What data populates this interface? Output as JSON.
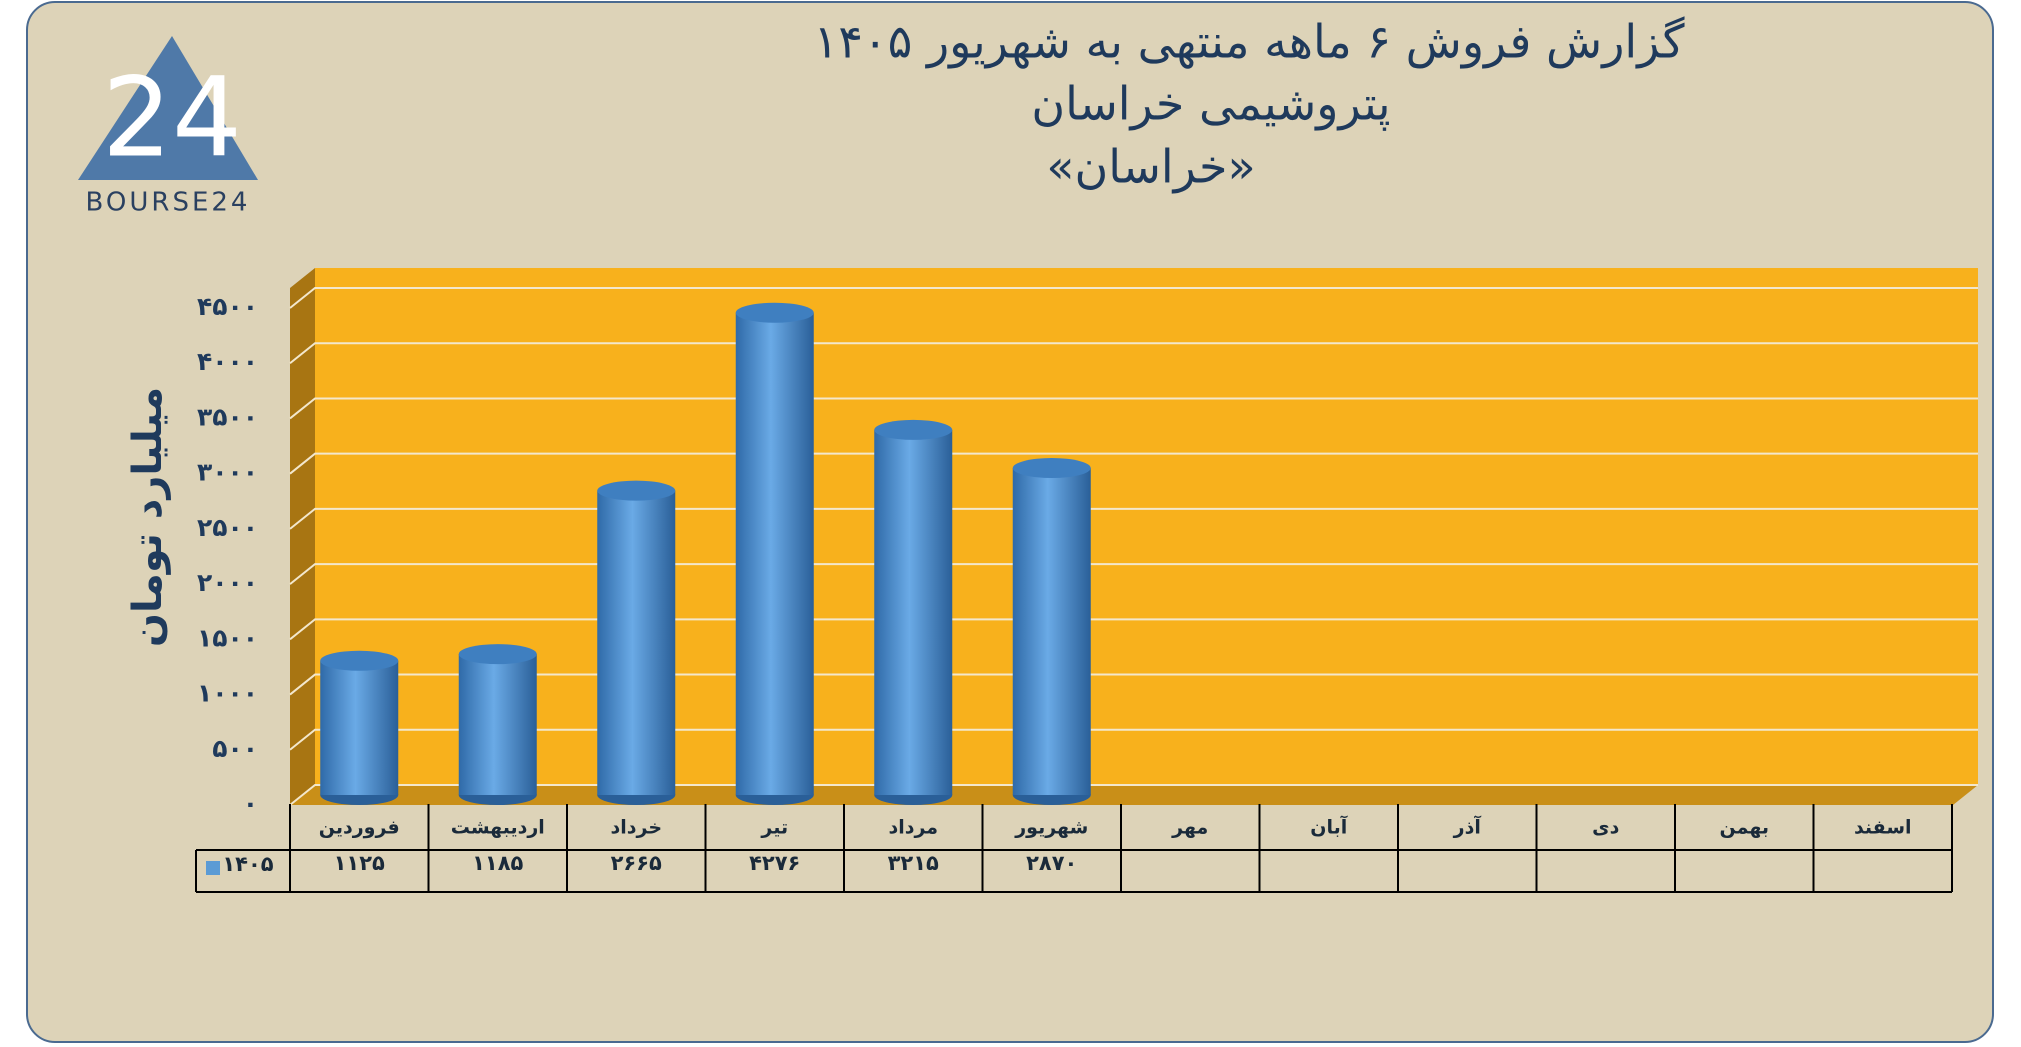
{
  "chart_data": {
    "type": "bar",
    "title": "گزارش  فروش ۶ ماهه منتهی به شهریور ۱۴۰۵",
    "subtitle": "پتروشیمی خراسان",
    "symbol": "«خراسان»",
    "logo_text": "BOURSE24",
    "logo_mark": "24",
    "y_label": "میلیارد تومان",
    "categories": [
      "فروردین",
      "اردیبهشت",
      "خرداد",
      "تیر",
      "مرداد",
      "شهریور",
      "مهر",
      "آبان",
      "آذر",
      "دی",
      "بهمن",
      "اسفند"
    ],
    "series": [
      {
        "name": "۱۴۰۵",
        "color": "#5b9bd5",
        "values": [
          1125,
          1185,
          2665,
          4276,
          3215,
          2870,
          null,
          null,
          null,
          null,
          null,
          null
        ],
        "value_labels": [
          "۱۱۲۵",
          "۱۱۸۵",
          "۲۶۶۵",
          "۴۲۷۶",
          "۳۲۱۵",
          "۲۸۷۰",
          null,
          null,
          null,
          null,
          null,
          null
        ]
      }
    ],
    "ylim": [
      0,
      4500
    ],
    "yticks": [
      {
        "value": 0,
        "label": "۰"
      },
      {
        "value": 500,
        "label": "۵۰۰"
      },
      {
        "value": 1000,
        "label": "۱۰۰۰"
      },
      {
        "value": 1500,
        "label": "۱۵۰۰"
      },
      {
        "value": 2000,
        "label": "۲۰۰۰"
      },
      {
        "value": 2500,
        "label": "۲۵۰۰"
      },
      {
        "value": 3000,
        "label": "۳۰۰۰"
      },
      {
        "value": 3500,
        "label": "۳۵۰۰"
      },
      {
        "value": 4000,
        "label": "۴۰۰۰"
      },
      {
        "value": 4500,
        "label": "۴۵۰۰"
      }
    ],
    "grid": true
  }
}
